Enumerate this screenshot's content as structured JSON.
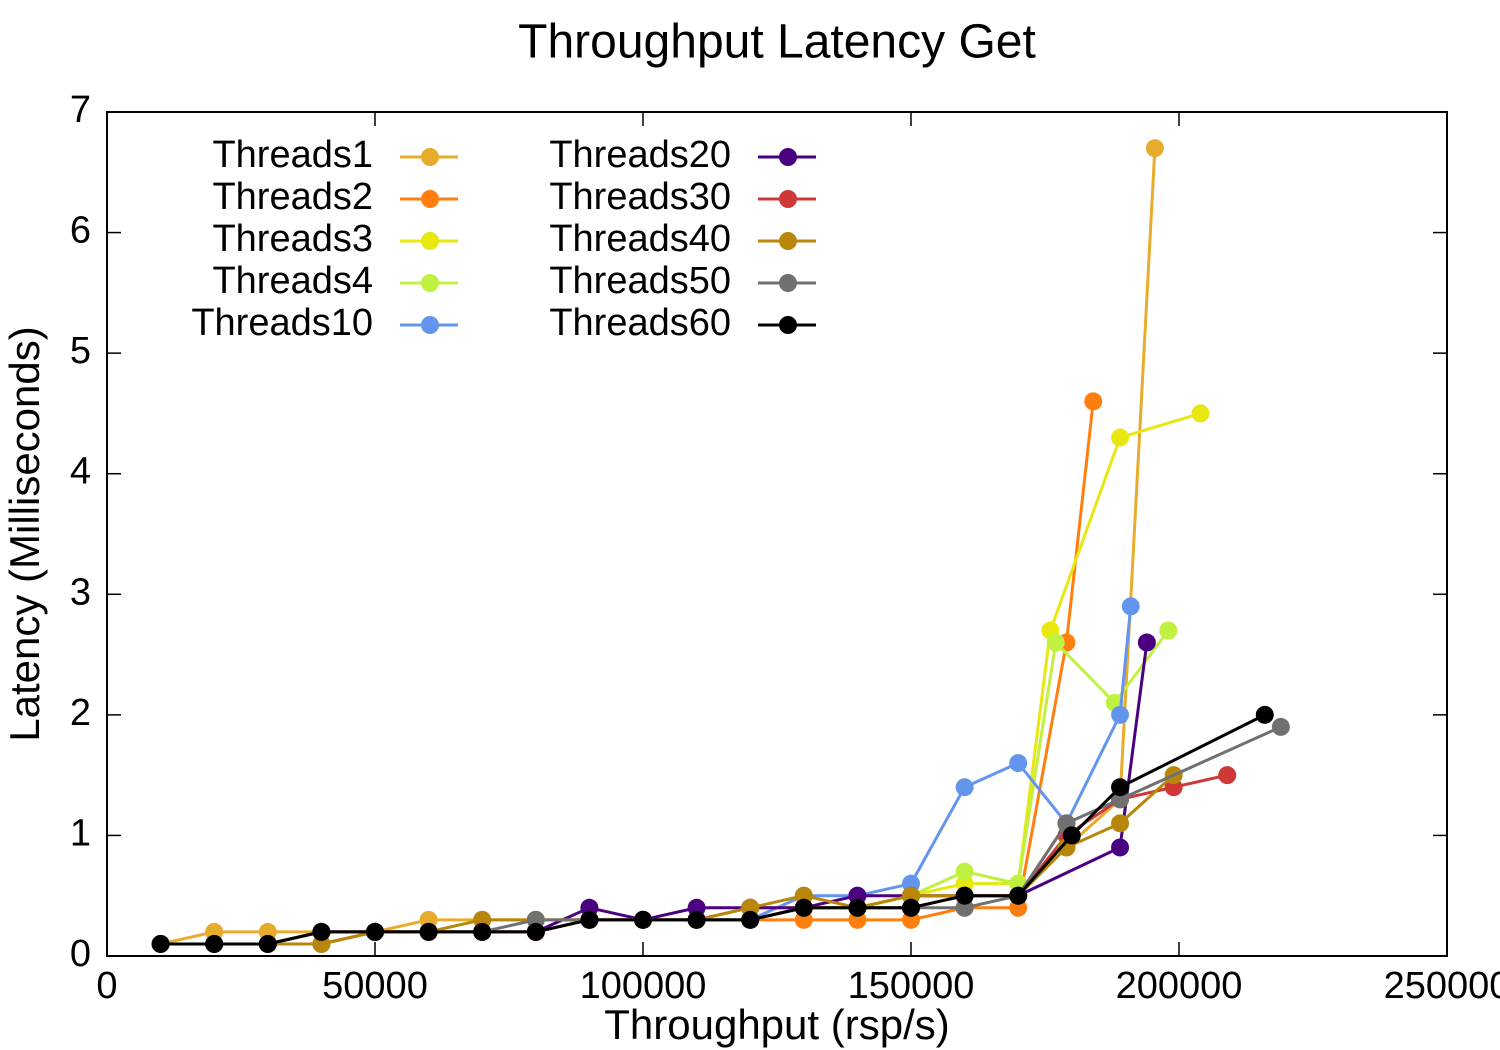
{
  "chart_data": {
    "type": "line",
    "title": "Throughput Latency Get",
    "xlabel": "Throughput (rsp/s)",
    "ylabel": "Latency (Milliseconds)",
    "xlim": [
      0,
      250000
    ],
    "ylim": [
      0,
      7
    ],
    "xticks": [
      0,
      50000,
      100000,
      150000,
      200000,
      250000
    ],
    "yticks": [
      0,
      1,
      2,
      3,
      4,
      5,
      6,
      7
    ],
    "legend": "top-left",
    "series": [
      {
        "name": "Threads1",
        "color": "#e8ac2c",
        "x": [
          10000,
          20000,
          30000,
          40000,
          50000,
          60000,
          70000,
          80000,
          90000,
          100000,
          110000,
          120000,
          130000,
          140000,
          150000,
          160000,
          170000,
          179000,
          189000,
          195500
        ],
        "values": [
          0.1,
          0.2,
          0.2,
          0.2,
          0.2,
          0.3,
          0.3,
          0.3,
          0.3,
          0.3,
          0.3,
          0.4,
          0.4,
          0.4,
          0.5,
          0.5,
          0.5,
          0.9,
          1.3,
          6.7
        ]
      },
      {
        "name": "Threads2",
        "color": "#ff7f0e",
        "x": [
          10000,
          20000,
          30000,
          40000,
          50000,
          60000,
          70000,
          80000,
          90000,
          100000,
          110000,
          120000,
          130000,
          140000,
          150000,
          160000,
          170000,
          179000,
          184000
        ],
        "values": [
          0.1,
          0.1,
          0.1,
          0.1,
          0.2,
          0.2,
          0.2,
          0.2,
          0.3,
          0.3,
          0.3,
          0.3,
          0.3,
          0.3,
          0.3,
          0.4,
          0.4,
          2.6,
          4.6
        ]
      },
      {
        "name": "Threads3",
        "color": "#e8e810",
        "x": [
          10000,
          20000,
          30000,
          40000,
          50000,
          60000,
          70000,
          80000,
          90000,
          100000,
          110000,
          120000,
          130000,
          140000,
          150000,
          160000,
          170000,
          176000,
          189000,
          204000
        ],
        "values": [
          0.1,
          0.1,
          0.1,
          0.1,
          0.2,
          0.2,
          0.2,
          0.2,
          0.3,
          0.3,
          0.3,
          0.3,
          0.4,
          0.4,
          0.5,
          0.6,
          0.6,
          2.7,
          4.3,
          4.5
        ]
      },
      {
        "name": "Threads4",
        "color": "#c0f040",
        "x": [
          10000,
          20000,
          30000,
          40000,
          50000,
          60000,
          70000,
          80000,
          90000,
          100000,
          110000,
          120000,
          130000,
          140000,
          150000,
          160000,
          170000,
          177000,
          188000,
          198000
        ],
        "values": [
          0.1,
          0.1,
          0.1,
          0.1,
          0.2,
          0.2,
          0.2,
          0.2,
          0.3,
          0.3,
          0.3,
          0.3,
          0.4,
          0.4,
          0.5,
          0.7,
          0.6,
          2.6,
          2.1,
          2.7
        ]
      },
      {
        "name": "Threads10",
        "color": "#6495ed",
        "x": [
          10000,
          20000,
          30000,
          40000,
          50000,
          60000,
          70000,
          80000,
          90000,
          100000,
          110000,
          120000,
          130000,
          140000,
          150000,
          160000,
          170000,
          179000,
          189000,
          191000
        ],
        "values": [
          0.1,
          0.1,
          0.1,
          0.1,
          0.2,
          0.2,
          0.2,
          0.2,
          0.3,
          0.3,
          0.3,
          0.3,
          0.5,
          0.5,
          0.6,
          1.4,
          1.6,
          1.1,
          2.0,
          2.9
        ]
      },
      {
        "name": "Threads20",
        "color": "#4b0082",
        "x": [
          10000,
          20000,
          30000,
          40000,
          50000,
          60000,
          70000,
          80000,
          90000,
          100000,
          110000,
          120000,
          130000,
          140000,
          150000,
          160000,
          170000,
          189000,
          194000
        ],
        "values": [
          0.1,
          0.1,
          0.1,
          0.2,
          0.2,
          0.2,
          0.2,
          0.2,
          0.4,
          0.3,
          0.4,
          0.4,
          0.4,
          0.5,
          0.5,
          0.5,
          0.5,
          0.9,
          2.6
        ]
      },
      {
        "name": "Threads30",
        "color": "#d03838",
        "x": [
          10000,
          20000,
          30000,
          40000,
          50000,
          60000,
          70000,
          80000,
          90000,
          100000,
          110000,
          120000,
          130000,
          140000,
          150000,
          160000,
          170000,
          179000,
          189000,
          199000,
          209000
        ],
        "values": [
          0.1,
          0.1,
          0.1,
          0.2,
          0.2,
          0.2,
          0.2,
          0.2,
          0.3,
          0.3,
          0.3,
          0.3,
          0.4,
          0.4,
          0.4,
          0.5,
          0.5,
          1.0,
          1.3,
          1.4,
          1.5
        ]
      },
      {
        "name": "Threads40",
        "color": "#b8860b",
        "x": [
          10000,
          20000,
          30000,
          40000,
          50000,
          60000,
          70000,
          80000,
          90000,
          100000,
          110000,
          120000,
          130000,
          140000,
          150000,
          160000,
          170000,
          179000,
          189000,
          199000
        ],
        "values": [
          0.1,
          0.1,
          0.1,
          0.1,
          0.2,
          0.2,
          0.3,
          0.3,
          0.3,
          0.3,
          0.3,
          0.4,
          0.5,
          0.4,
          0.5,
          0.5,
          0.5,
          0.9,
          1.1,
          1.5
        ]
      },
      {
        "name": "Threads50",
        "color": "#707070",
        "x": [
          10000,
          20000,
          30000,
          40000,
          50000,
          60000,
          70000,
          80000,
          90000,
          100000,
          110000,
          120000,
          130000,
          140000,
          150000,
          160000,
          170000,
          179000,
          189000,
          219000
        ],
        "values": [
          0.1,
          0.1,
          0.1,
          0.2,
          0.2,
          0.2,
          0.2,
          0.3,
          0.3,
          0.3,
          0.3,
          0.3,
          0.4,
          0.4,
          0.4,
          0.4,
          0.5,
          1.1,
          1.3,
          1.9
        ]
      },
      {
        "name": "Threads60",
        "color": "#000000",
        "x": [
          10000,
          20000,
          30000,
          40000,
          50000,
          60000,
          70000,
          80000,
          90000,
          100000,
          110000,
          120000,
          130000,
          140000,
          150000,
          160000,
          170000,
          180000,
          189000,
          216000
        ],
        "values": [
          0.1,
          0.1,
          0.1,
          0.2,
          0.2,
          0.2,
          0.2,
          0.2,
          0.3,
          0.3,
          0.3,
          0.3,
          0.4,
          0.4,
          0.4,
          0.5,
          0.5,
          1.0,
          1.4,
          2.0
        ]
      }
    ]
  }
}
